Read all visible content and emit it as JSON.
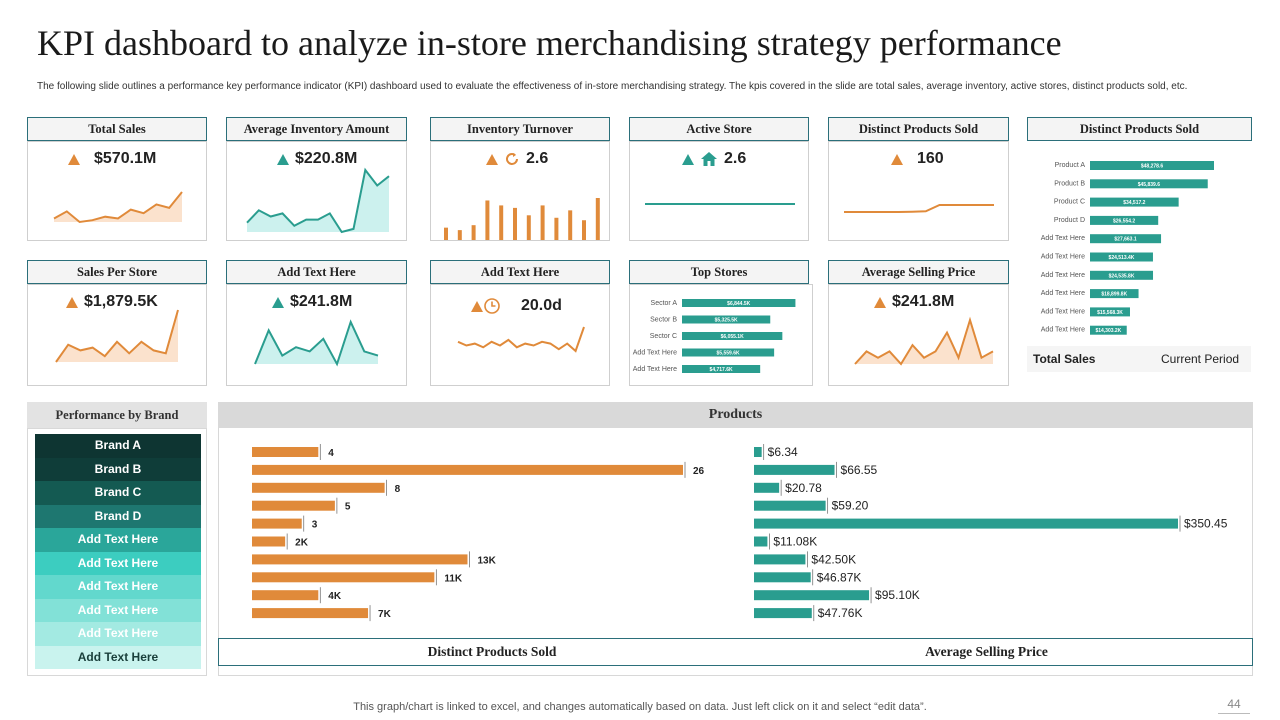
{
  "title": "KPI dashboard to analyze in-store merchandising strategy performance",
  "subtitle": "The following slide outlines a performance key performance indicator (KPI) dashboard used to evaluate the effectiveness of in-store merchandising strategy. The kpis covered in the slide are total sales, average inventory, active stores, distinct products sold, etc.",
  "colors": {
    "orange": "#e08a3a",
    "teal": "#2a9d8f",
    "header_border": "#2b6f7a"
  },
  "cards": {
    "total_sales": {
      "label": "Total Sales",
      "value": "$570.1M",
      "icon": "up-triangle-icon"
    },
    "avg_inventory": {
      "label": "Average Inventory Amount",
      "value": "$220.8M",
      "icon": "up-triangle-icon"
    },
    "inventory_turnover": {
      "label": "Inventory Turnover",
      "value": "2.6",
      "icon": "refresh-icon"
    },
    "active_store": {
      "label": "Active Store",
      "value": "2.6",
      "icon": "home-icon"
    },
    "distinct_products": {
      "label": "Distinct Products Sold",
      "value": "160",
      "icon": "up-triangle-icon"
    },
    "sales_per_store": {
      "label": "Sales Per Store",
      "value": "$1,879.5K",
      "icon": "up-triangle-icon"
    },
    "add_text_1": {
      "label": "Add Text Here",
      "value": "$241.8M",
      "icon": "up-triangle-icon"
    },
    "add_text_2": {
      "label": "Add Text Here",
      "value": "20.0d",
      "icon": "clock-icon"
    },
    "top_stores": {
      "label": "Top Stores"
    },
    "avg_selling_price": {
      "label": "Average Selling Price",
      "value": "$241.8M",
      "icon": "up-triangle-icon"
    },
    "distinct_products_big": {
      "label": "Distinct Products Sold"
    }
  },
  "legend": {
    "left": "Total Sales",
    "right": "Current Period"
  },
  "performance": {
    "title": "Performance by Brand",
    "brands": [
      "Brand A",
      "Brand B",
      "Brand C",
      "Brand D",
      "Add Text Here",
      "Add Text Here",
      "Add Text Here",
      "Add Text Here",
      "Add Text Here",
      "Add Text Here"
    ],
    "brand_colors": [
      "#0e3532",
      "#0f3d39",
      "#145a52",
      "#1e7770",
      "#2aa69a",
      "#3ccdc0",
      "#62d8cd",
      "#82e1d7",
      "#a3eae2",
      "#c9f3ee"
    ]
  },
  "products": {
    "title": "Products",
    "left_footer": "Distinct Products Sold",
    "right_footer": "Average Selling Price"
  },
  "footer": {
    "note": "This graph/chart is linked to excel, and changes automatically based on data. Just left click on it and select “edit data”.",
    "page": "44"
  },
  "chart_data": [
    {
      "type": "area",
      "title": "Total Sales",
      "values": [
        8,
        12,
        6,
        7,
        9,
        8,
        13,
        11,
        16,
        14,
        23
      ]
    },
    {
      "type": "area",
      "title": "Average Inventory Amount",
      "values": [
        18,
        22,
        20,
        21,
        17,
        19,
        19,
        21,
        15,
        16,
        35,
        30,
        33
      ]
    },
    {
      "type": "bar",
      "title": "Inventory Turnover",
      "values": [
        5,
        4,
        6,
        16,
        14,
        13,
        10,
        14,
        9,
        12,
        8,
        17
      ]
    },
    {
      "type": "line",
      "title": "Active Store",
      "values": [
        5,
        5,
        5,
        5,
        5,
        5,
        5,
        5,
        5
      ]
    },
    {
      "type": "line",
      "title": "Distinct Products Sold",
      "values": [
        3,
        3,
        3,
        3,
        3,
        3.1,
        3.2,
        5,
        5,
        5,
        5,
        5
      ]
    },
    {
      "type": "area",
      "title": "Sales Per Store",
      "values": [
        6,
        12,
        10,
        11,
        8,
        13,
        9,
        13,
        10,
        9,
        24
      ]
    },
    {
      "type": "area",
      "title": "Add Text Here",
      "values": [
        10,
        18,
        12,
        14,
        13,
        16,
        10,
        20,
        13,
        12
      ]
    },
    {
      "type": "line",
      "title": "Add Text Here",
      "values": [
        14,
        12,
        13,
        11,
        14,
        12,
        15,
        11,
        13,
        12,
        14,
        13,
        10,
        13,
        9,
        22
      ]
    },
    {
      "type": "bar",
      "title": "Top Stores",
      "orientation": "horizontal",
      "categories": [
        "Sector A",
        "Sector B",
        "Sector C",
        "Add Text Here",
        "Add Text Here"
      ],
      "values": [
        6844.5,
        5325.5,
        6055.1,
        5559.6,
        4717.6
      ],
      "labels": [
        "$6,844.5K",
        "$5,325.5K",
        "$6,055.1K",
        "$5,559.6K",
        "$4,717.6K"
      ]
    },
    {
      "type": "area",
      "title": "Average Selling Price",
      "values": [
        14,
        16,
        15,
        16,
        14,
        17,
        15,
        16,
        19,
        15,
        21,
        15,
        16
      ]
    },
    {
      "type": "bar",
      "title": "Distinct Products Sold",
      "orientation": "horizontal",
      "categories": [
        "Product A",
        "Product B",
        "Product C",
        "Product D",
        "Add Text Here",
        "Add Text Here",
        "Add Text Here",
        "Add Text Here",
        "Add Text Here",
        "Add Text Here"
      ],
      "values": [
        48278.6,
        45839.6,
        34517.2,
        26554.2,
        27663.1,
        24513.4,
        24535.8,
        18899.8,
        15568.3,
        14303.2
      ],
      "labels": [
        "$48,278.6",
        "$45,839.6",
        "$34,517.2",
        "$26,554.2",
        "$27,663.1",
        "$24,513.4K",
        "$24,535.8K",
        "$18,899.8K",
        "$15,568.3K",
        "$14,303.2K"
      ]
    },
    {
      "type": "bar",
      "title": "Distinct Products Sold",
      "orientation": "horizontal",
      "values": [
        4,
        26,
        8,
        5,
        3,
        2,
        13,
        11,
        4,
        7
      ],
      "labels": [
        "4",
        "26",
        "8",
        "5",
        "3",
        "2K",
        "13K",
        "11K",
        "4K",
        "7K"
      ]
    },
    {
      "type": "bar",
      "title": "Average Selling Price",
      "orientation": "horizontal",
      "values": [
        6.34,
        66.55,
        20.78,
        59.2,
        350.45,
        11.08,
        42.5,
        46.87,
        95.1,
        47.76
      ],
      "labels": [
        "$6.34",
        "$66.55",
        "$20.78",
        "$59.20",
        "$350.45",
        "$11.08K",
        "$42.50K",
        "$46.87K",
        "$95.10K",
        "$47.76K"
      ]
    }
  ]
}
